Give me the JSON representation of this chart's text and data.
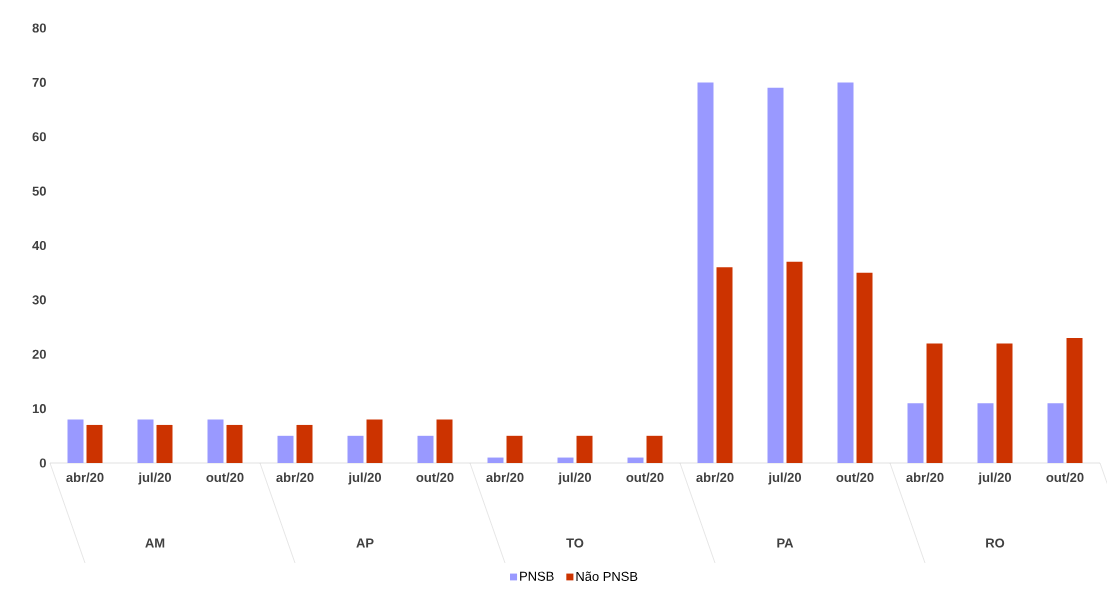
{
  "chart_data": {
    "type": "bar",
    "categories": [
      "abr/20",
      "jul/20",
      "out/20",
      "abr/20",
      "jul/20",
      "out/20",
      "abr/20",
      "jul/20",
      "out/20",
      "abr/20",
      "jul/20",
      "out/20",
      "abr/20",
      "jul/20",
      "out/20"
    ],
    "series": [
      {
        "name": "PNSB",
        "color": "#9999ff",
        "values": [
          8,
          8,
          8,
          5,
          5,
          5,
          1,
          1,
          1,
          70,
          69,
          70,
          11,
          11,
          11
        ]
      },
      {
        "name": "Não PNSB",
        "color": "#cc3300",
        "values": [
          7,
          7,
          7,
          7,
          8,
          8,
          5,
          5,
          5,
          36,
          37,
          35,
          22,
          22,
          23
        ]
      }
    ],
    "annotations": [
      "AM",
      "AP",
      "TO",
      "PA",
      "RO"
    ],
    "ylim": [
      0,
      80
    ],
    "yticks": [
      0,
      10,
      20,
      30,
      40,
      50,
      60,
      70,
      80
    ],
    "grid": false,
    "legend": "bottom"
  }
}
